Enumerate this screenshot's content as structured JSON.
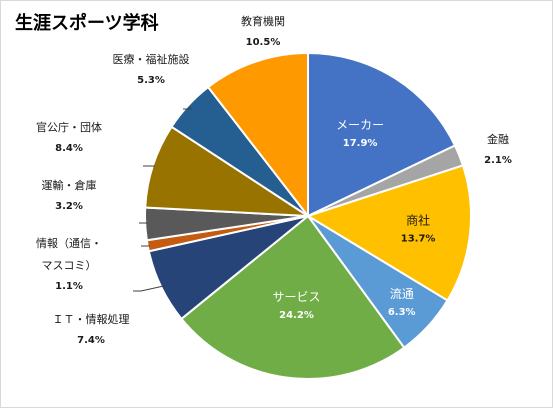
{
  "chart_data": {
    "type": "pie",
    "title": "生涯スポーツ学科",
    "slices": [
      {
        "label": "メーカー",
        "value": 17.9,
        "value_label": "17.9%",
        "color": "#4472c4"
      },
      {
        "label": "金融",
        "value": 2.1,
        "value_label": "2.1%",
        "color": "#a5a5a5"
      },
      {
        "label": "商社",
        "value": 13.7,
        "value_label": "13.7%",
        "color": "#ffc000"
      },
      {
        "label": "流通",
        "value": 6.3,
        "value_label": "6.3%",
        "color": "#5b9bd5"
      },
      {
        "label": "サービス",
        "value": 24.2,
        "value_label": "24.2%",
        "color": "#70ad47"
      },
      {
        "label": "ＩＴ・情報処理",
        "value": 7.4,
        "value_label": "7.4%",
        "color": "#264478"
      },
      {
        "label": "情報（通信・マスコミ）",
        "label_lines": [
          "情報（通信・",
          "マスコミ）"
        ],
        "value": 1.1,
        "value_label": "1.1%",
        "color": "#c55a11"
      },
      {
        "label": "運輸・倉庫",
        "value": 3.2,
        "value_label": "3.2%",
        "color": "#595959"
      },
      {
        "label": "官公庁・団体",
        "value": 8.4,
        "value_label": "8.4%",
        "color": "#997300"
      },
      {
        "label": "医療・福祉施設",
        "value": 5.3,
        "value_label": "5.3%",
        "color": "#255e91"
      },
      {
        "label": "教育機関",
        "value": 10.5,
        "value_label": "10.5%",
        "color": "#ff9900"
      }
    ],
    "start": "12 o'clock",
    "direction": "clockwise",
    "legend": "none",
    "data_labels": "category and percentage"
  }
}
